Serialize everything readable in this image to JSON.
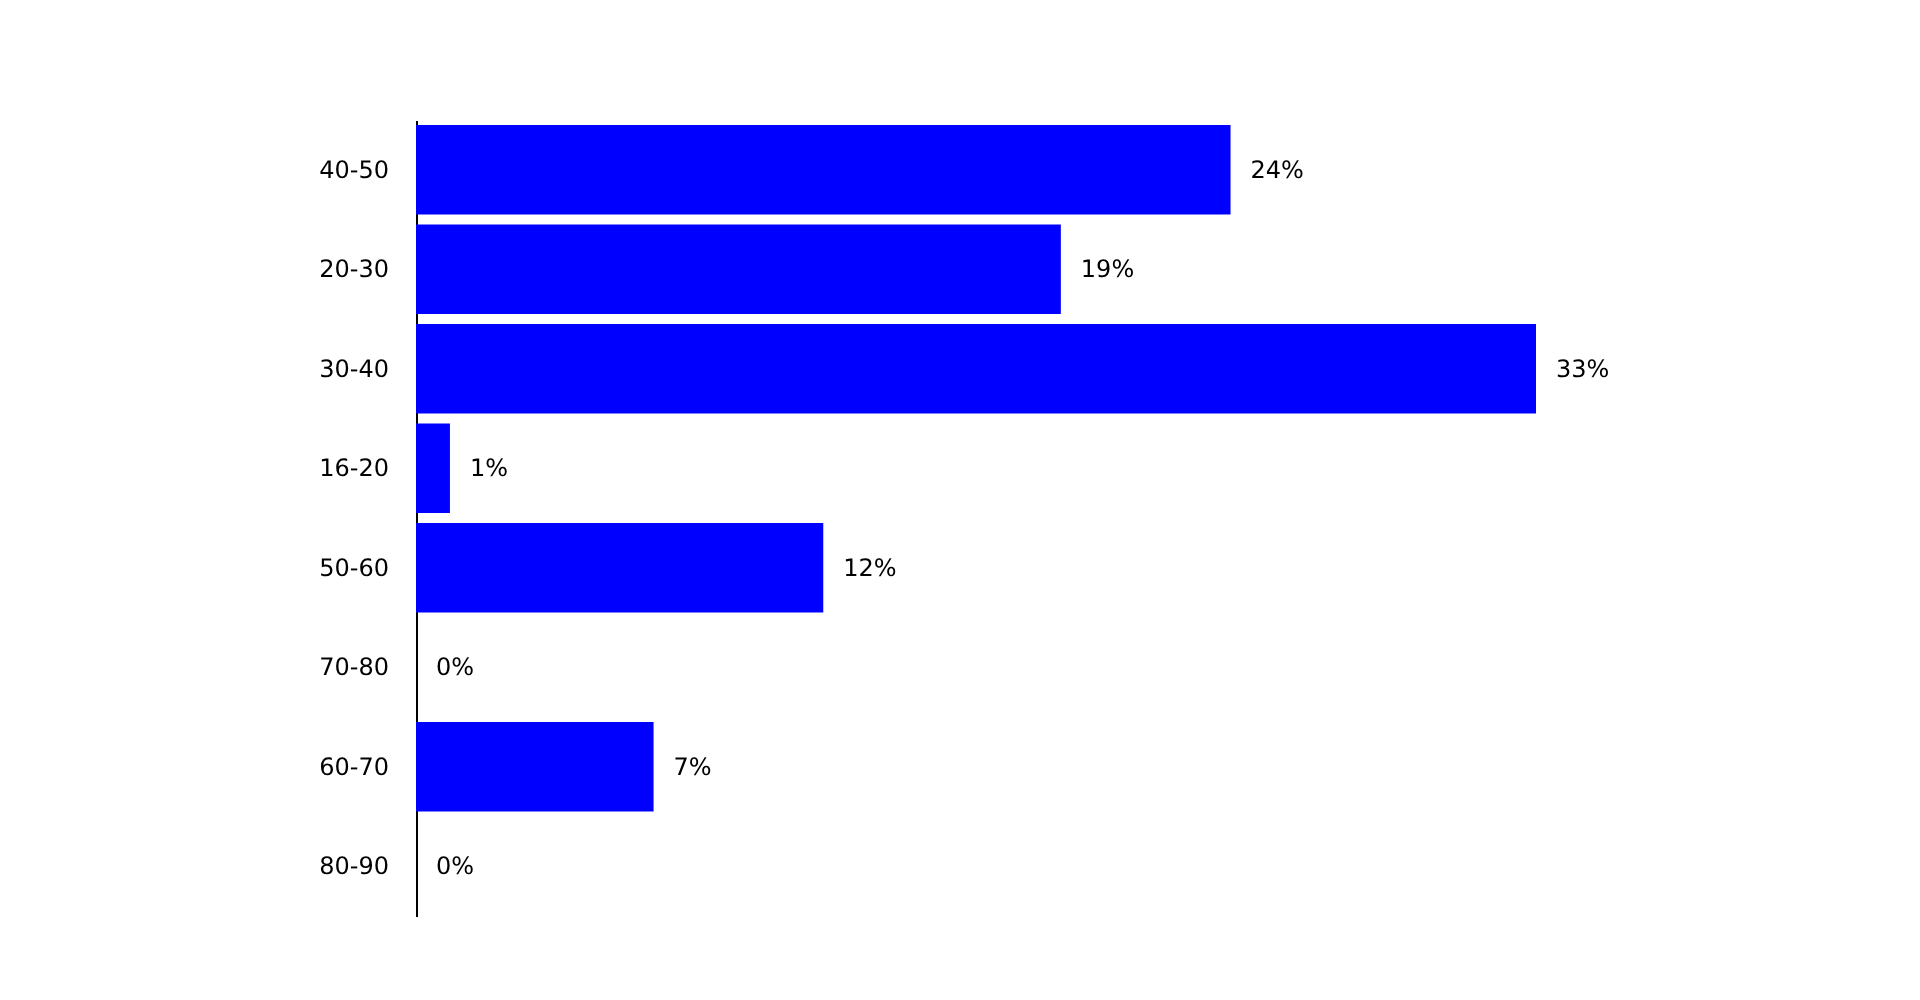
{
  "chart_data": {
    "type": "bar",
    "orientation": "horizontal",
    "categories": [
      "40-50",
      "20-30",
      "30-40",
      "16-20",
      "50-60",
      "70-80",
      "60-70",
      "80-90"
    ],
    "values": [
      24,
      19,
      33,
      1,
      12,
      0,
      7,
      0
    ],
    "value_labels": [
      "24%",
      "19%",
      "33%",
      "1%",
      "12%",
      "0%",
      "7%",
      "0%"
    ],
    "color": "#0000ff",
    "tick_labels": "y"
  }
}
